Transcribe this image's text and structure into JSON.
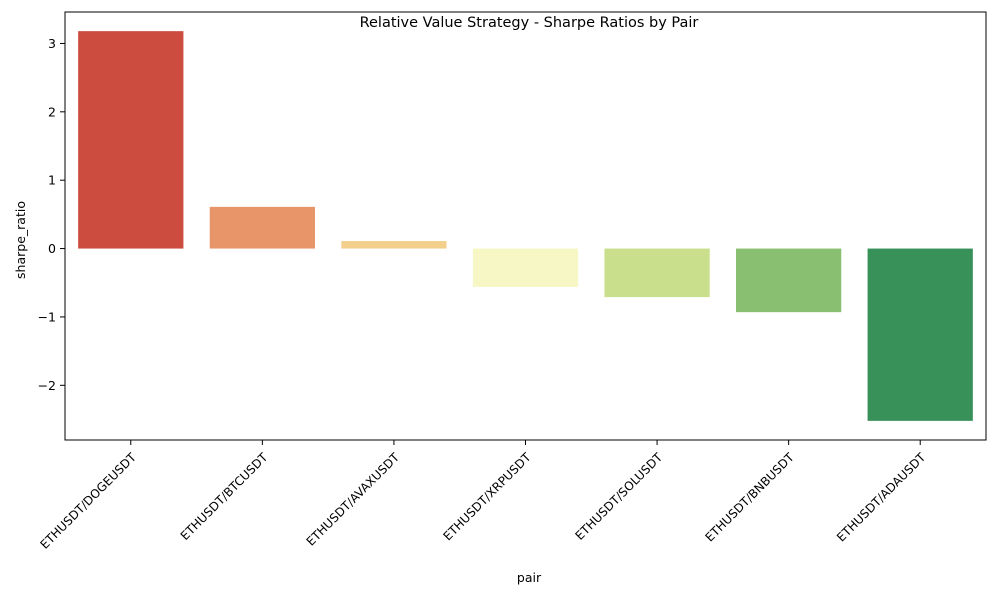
{
  "chart_data": {
    "type": "bar",
    "title": "Relative Value Strategy - Sharpe Ratios by Pair",
    "xlabel": "pair",
    "ylabel": "sharpe_ratio",
    "categories": [
      "ETHUSDT/DOGEUSDT",
      "ETHUSDT/BTCUSDT",
      "ETHUSDT/AVAXUSDT",
      "ETHUSDT/XRPUSDT",
      "ETHUSDT/SOLUSDT",
      "ETHUSDT/BNBUSDT",
      "ETHUSDT/ADAUSDT"
    ],
    "values": [
      3.18,
      0.61,
      0.11,
      -0.56,
      -0.71,
      -0.93,
      -2.52
    ],
    "colors": [
      "#cc4c3f",
      "#e8956a",
      "#f2d08c",
      "#f6f7c4",
      "#c9df8c",
      "#88bf70",
      "#379158"
    ],
    "yticks": [
      -2,
      -1,
      0,
      1,
      2,
      3
    ],
    "ytick_labels": [
      "−2",
      "−1",
      "0",
      "1",
      "2",
      "3"
    ],
    "ylim": [
      -2.8,
      3.46
    ],
    "grid": false,
    "legend": false
  }
}
